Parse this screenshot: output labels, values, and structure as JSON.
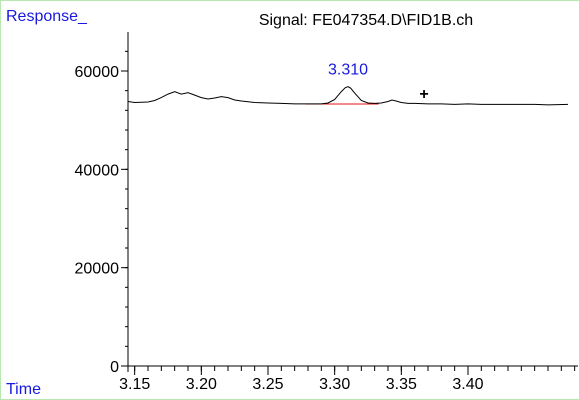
{
  "chart_data": {
    "type": "line",
    "title": "Signal: FE047354.D\\FID1B.ch",
    "ylabel": "Response_",
    "xlabel": "Time",
    "xlim": [
      3.145,
      3.475
    ],
    "ylim": [
      0,
      70000
    ],
    "x_ticks": [
      3.15,
      3.2,
      3.25,
      3.3,
      3.35,
      3.4
    ],
    "x_tick_labels": [
      "3.15",
      "3.20",
      "3.25",
      "3.30",
      "3.35",
      "3.40"
    ],
    "x_minor_step": 0.01,
    "y_ticks": [
      0,
      20000,
      40000,
      60000
    ],
    "y_tick_labels": [
      "0",
      "20000",
      "40000",
      "60000"
    ],
    "y_minor_step": 4000,
    "grid": false,
    "series": [
      {
        "color": "#000000",
        "x": [
          3.145,
          3.15,
          3.16,
          3.165,
          3.17,
          3.175,
          3.18,
          3.185,
          3.19,
          3.195,
          3.2,
          3.205,
          3.21,
          3.215,
          3.22,
          3.225,
          3.23,
          3.24,
          3.25,
          3.26,
          3.27,
          3.28,
          3.29,
          3.295,
          3.3,
          3.305,
          3.308,
          3.31,
          3.312,
          3.315,
          3.32,
          3.325,
          3.33,
          3.335,
          3.34,
          3.343,
          3.346,
          3.35,
          3.355,
          3.36,
          3.37,
          3.38,
          3.39,
          3.4,
          3.41,
          3.42,
          3.43,
          3.44,
          3.45,
          3.46,
          3.475
        ],
        "y": [
          53800,
          53600,
          53700,
          54000,
          54600,
          55300,
          55800,
          55300,
          55600,
          55100,
          54600,
          54300,
          54500,
          54800,
          54600,
          54100,
          53900,
          53600,
          53500,
          53400,
          53300,
          53300,
          53300,
          53500,
          54200,
          55800,
          56600,
          56800,
          56500,
          55500,
          54000,
          53500,
          53400,
          53500,
          53800,
          54100,
          53900,
          53600,
          53400,
          53400,
          53300,
          53300,
          53200,
          53300,
          53200,
          53200,
          53200,
          53200,
          53200,
          53100,
          53200
        ]
      }
    ],
    "baseline": {
      "color": "#e01818",
      "x": [
        3.278,
        3.333
      ],
      "y": [
        53300,
        53300
      ]
    },
    "peak_label": {
      "text": "3.310",
      "x": 3.31,
      "y": 56800,
      "color": "#1818e0"
    },
    "marker": {
      "text": "+",
      "x": 3.367,
      "y": 55500
    }
  }
}
